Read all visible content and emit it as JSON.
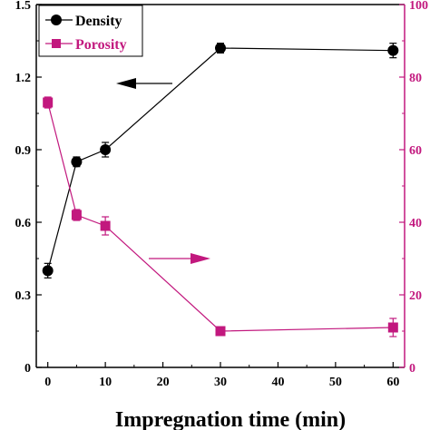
{
  "colors": {
    "density": "#000000",
    "porosity": "#c2187e",
    "axis": "#000000"
  },
  "chart_data": {
    "type": "line",
    "title": "",
    "xlabel": "Impregnation time (min)",
    "ylabel_left": "",
    "ylabel_right": "",
    "x_ticks": [
      0,
      10,
      20,
      30,
      40,
      50,
      60
    ],
    "xlim": [
      -2,
      62
    ],
    "y_left_ticks": [
      "0",
      "0.3",
      "0.6",
      "0.9",
      "1.2",
      "1.5"
    ],
    "y_left_lim": [
      0,
      1.5
    ],
    "y_right_ticks": [
      "0",
      "20",
      "40",
      "60",
      "80",
      "100"
    ],
    "y_right_lim": [
      0,
      100
    ],
    "grid": false,
    "legend_position": "top-left",
    "series": [
      {
        "name": "Density",
        "axis": "left",
        "marker": "circle",
        "color": "#000000",
        "x": [
          0,
          5,
          10,
          30,
          60
        ],
        "y": [
          0.4,
          0.85,
          0.9,
          1.32,
          1.31
        ],
        "err": [
          0.03,
          0.02,
          0.03,
          0.02,
          0.03
        ]
      },
      {
        "name": "Porosity",
        "axis": "right",
        "marker": "square",
        "color": "#c2187e",
        "x": [
          0,
          5,
          10,
          30,
          60
        ],
        "y": [
          73,
          42,
          39,
          10,
          11
        ],
        "err": [
          1.5,
          1.5,
          2.5,
          1.0,
          2.5
        ]
      }
    ],
    "annotations": [
      {
        "type": "arrow",
        "direction": "left",
        "points_to": "left-axis",
        "color": "#000000"
      },
      {
        "type": "arrow",
        "direction": "right",
        "points_to": "right-axis",
        "color": "#c2187e"
      }
    ]
  }
}
